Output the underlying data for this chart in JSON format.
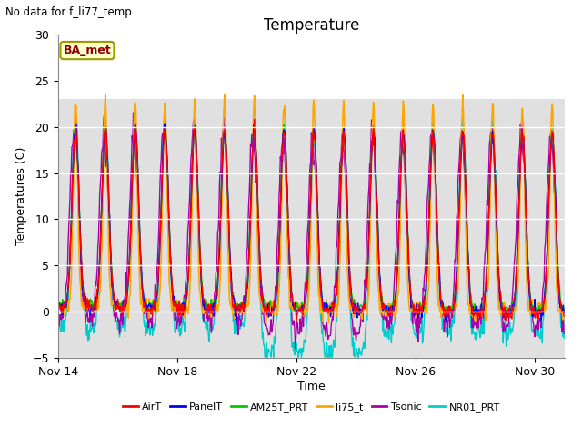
{
  "title": "Temperature",
  "xlabel": "Time",
  "ylabel": "Temperatures (C)",
  "top_left_text": "No data for f_li77_temp",
  "legend_label_text": "BA_met",
  "ylim": [
    -5,
    30
  ],
  "yticks": [
    -5,
    0,
    5,
    10,
    15,
    20,
    25,
    30
  ],
  "xlim_days": [
    0,
    17
  ],
  "xtick_positions": [
    0,
    4,
    8,
    12,
    16
  ],
  "xtick_labels": [
    "Nov 14",
    "Nov 18",
    "Nov 22",
    "Nov 26",
    "Nov 30"
  ],
  "shaded_ymin": -5,
  "shaded_ymax": 23,
  "series": {
    "AirT": {
      "color": "#ff0000",
      "lw": 1.0
    },
    "PanelT": {
      "color": "#0000ff",
      "lw": 1.0
    },
    "AM25T_PRT": {
      "color": "#00cc00",
      "lw": 1.0
    },
    "li75_t": {
      "color": "#ffa500",
      "lw": 1.2
    },
    "Tsonic": {
      "color": "#aa00aa",
      "lw": 1.0
    },
    "NR01_PRT": {
      "color": "#00cccc",
      "lw": 1.0
    }
  },
  "plot_bg_color": "#ffffff",
  "shaded_color": "#e0e0e0",
  "fig_bg_color": "#ffffff",
  "grid_color": "#d0d0d0"
}
